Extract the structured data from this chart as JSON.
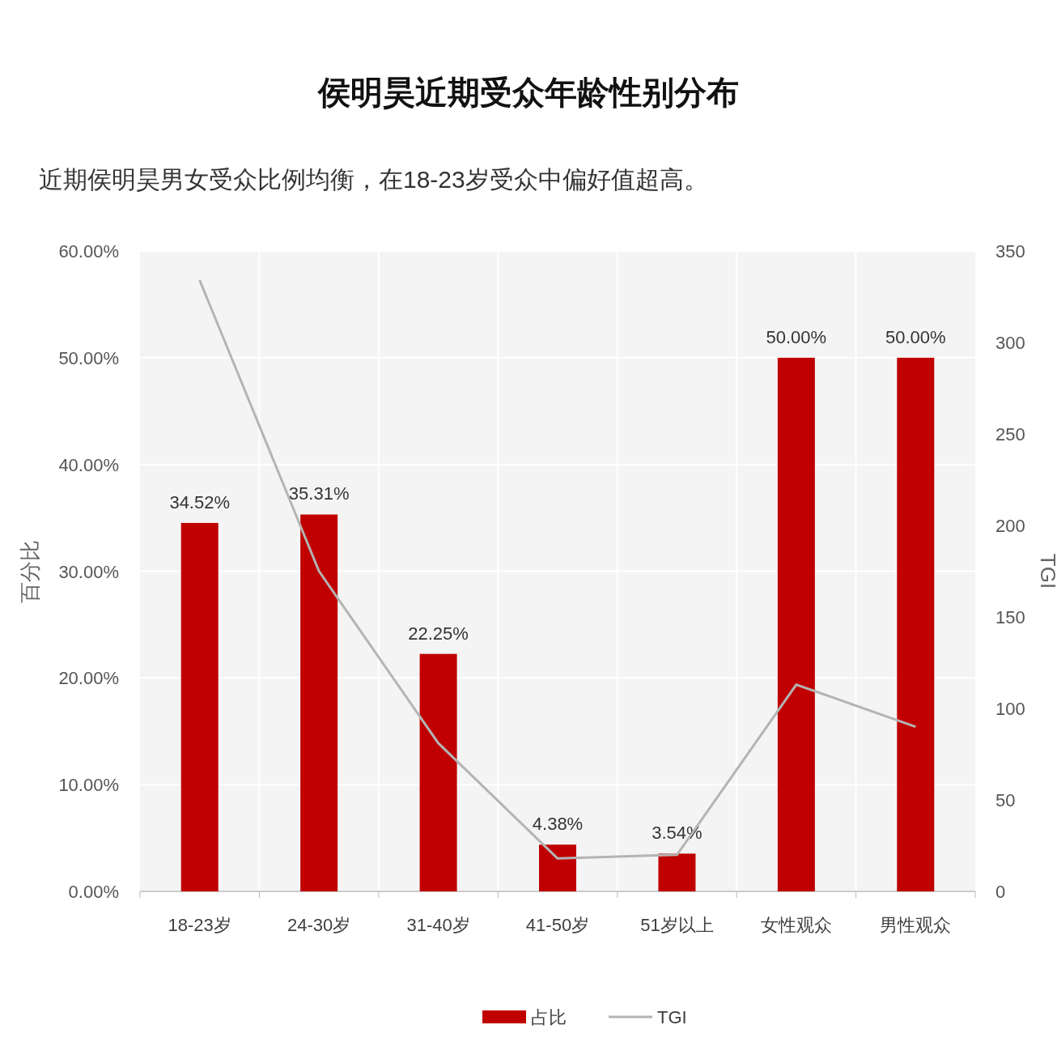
{
  "chart_data": {
    "type": "bar",
    "title": "侯明昊近期受众年龄性别分布",
    "subtitle": "近期侯明昊男女受众比例均衡，在18-23岁受众中偏好值超高。",
    "ylabel": "百分比",
    "y2label": "TGI",
    "categories": [
      "18-23岁",
      "24-30岁",
      "31-40岁",
      "41-50岁",
      "51岁以上",
      "女性观众",
      "男性观众"
    ],
    "series": [
      {
        "name": "占比",
        "color": "#c00000",
        "values": [
          34.52,
          35.31,
          22.25,
          4.38,
          3.54,
          50.0,
          50.0
        ],
        "value_labels": [
          "34.52%",
          "35.31%",
          "22.25%",
          "4.38%",
          "3.54%",
          "50.00%",
          "50.00%"
        ]
      },
      {
        "name": "TGI",
        "type": "line",
        "axis": "y2",
        "color": "#b4b4b4",
        "values": [
          334,
          175,
          81,
          18,
          20,
          113,
          90
        ]
      }
    ],
    "ylim": [
      0,
      60
    ],
    "yticks": [
      {
        "value": 0,
        "label": "0.00%"
      },
      {
        "value": 10,
        "label": "10.00%"
      },
      {
        "value": 20,
        "label": "20.00%"
      },
      {
        "value": 30,
        "label": "30.00%"
      },
      {
        "value": 40,
        "label": "40.00%"
      },
      {
        "value": 50,
        "label": "50.00%"
      },
      {
        "value": 60,
        "label": "60.00%"
      }
    ],
    "y2lim": [
      0,
      350
    ],
    "y2ticks": [
      0,
      50,
      100,
      150,
      200,
      250,
      300,
      350
    ],
    "grid": true,
    "legend": "bottom",
    "marker": "none",
    "line_style": "solid"
  }
}
